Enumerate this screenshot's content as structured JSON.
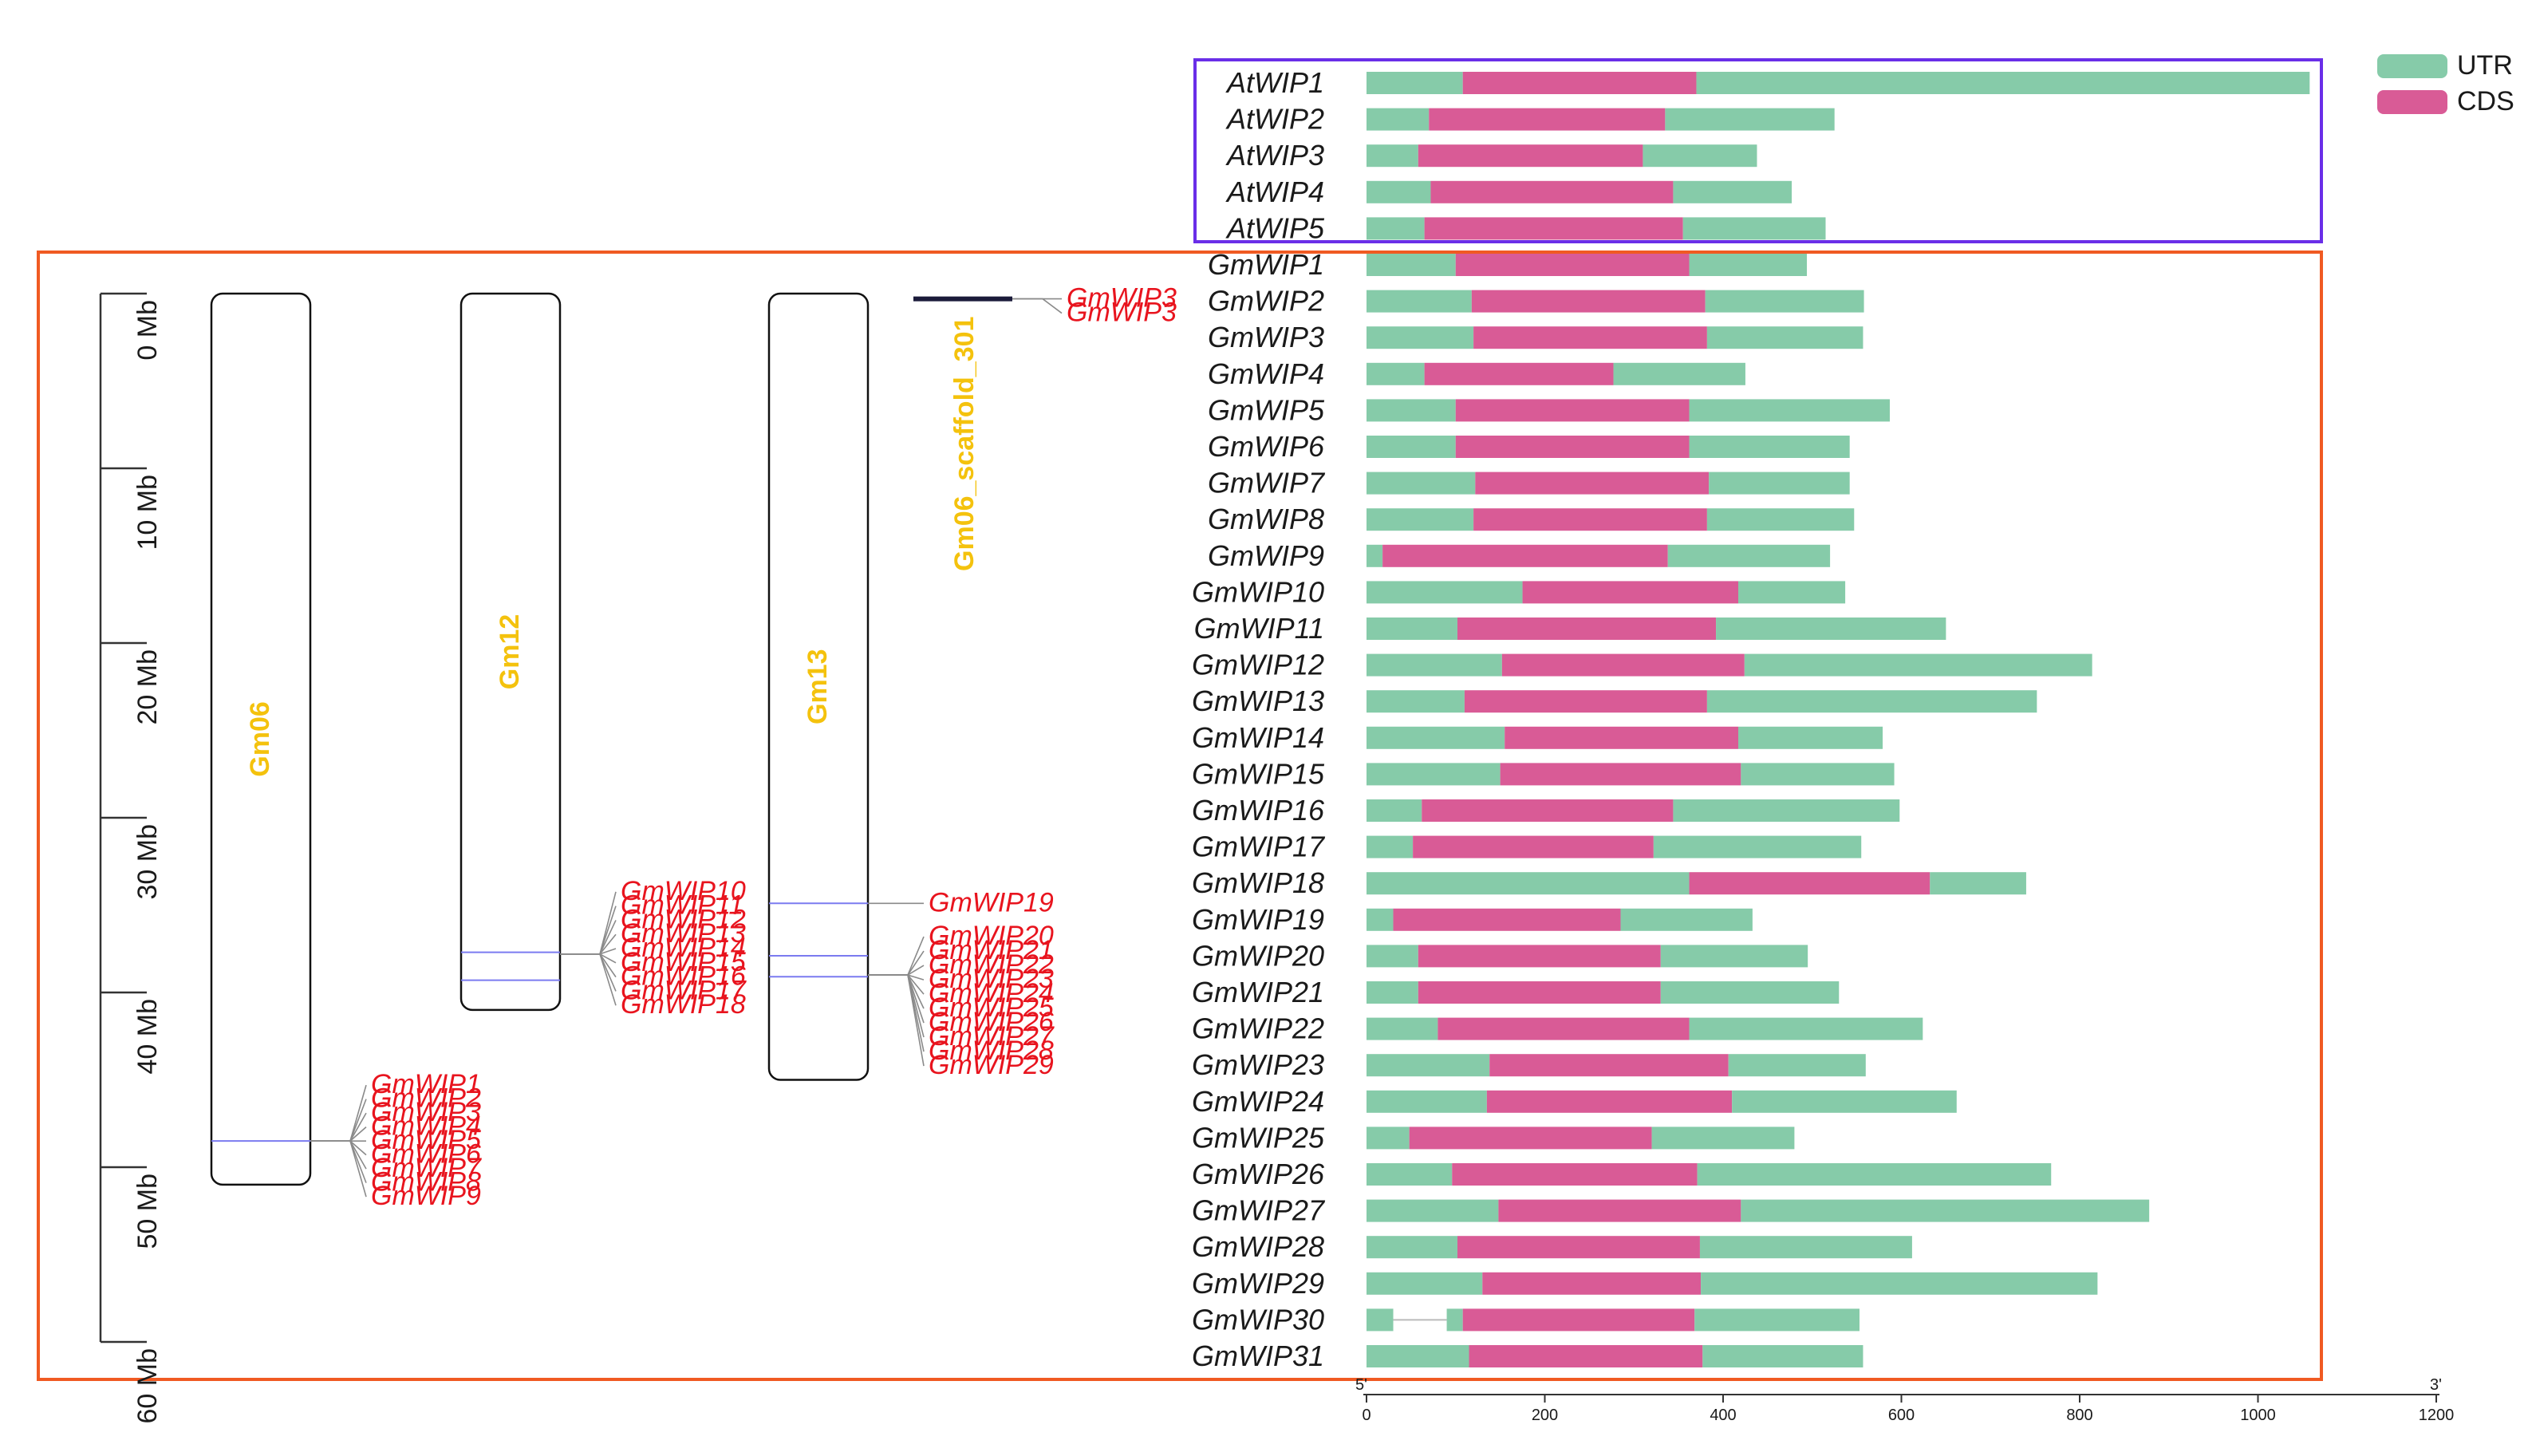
{
  "legend": {
    "utr_label": "UTR",
    "cds_label": "CDS",
    "utr_color": "#86cba9",
    "cds_color": "#d95b96"
  },
  "colors": {
    "arabidopsis_box": "#6a2ee8",
    "soybean_box": "#f05a22",
    "gene_label": "#e8141e",
    "chromosome_label": "#f4c20d",
    "connector": "#8a8a8a",
    "position_marker": "#7b7bf0"
  },
  "physical_map": {
    "scale_labels": [
      "0 Mb",
      "10 Mb",
      "20 Mb",
      "30 Mb",
      "40 Mb",
      "50 Mb",
      "60 Mb"
    ],
    "scale_max_mb": 60,
    "chromosomes": [
      {
        "name": "Gm06",
        "length_mb": 51,
        "positions_mb": [
          48.5
        ],
        "groups": [
          {
            "pos_mb": 48.5,
            "side": "right",
            "labels": [
              "GmWIP1",
              "GmWIP2",
              "GmWIP3",
              "GmWIP4",
              "GmWIP5",
              "GmWIP6",
              "GmWIP7",
              "GmWIP8",
              "GmWIP9"
            ]
          }
        ]
      },
      {
        "name": "Gm12",
        "length_mb": 41,
        "positions_mb": [
          37.7,
          39.3
        ],
        "groups": [
          {
            "pos_mb": 37.8,
            "side": "right",
            "labels": [
              "GmWIP10",
              "GmWIP11",
              "GmWIP12",
              "GmWIP13",
              "GmWIP14",
              "GmWIP15",
              "GmWIP16",
              "GmWIP17",
              "GmWIP18"
            ]
          }
        ]
      },
      {
        "name": "Gm13",
        "length_mb": 45,
        "positions_mb": [
          34.9,
          37.9,
          39.1
        ],
        "groups": [
          {
            "pos_mb": 34.9,
            "side": "right",
            "labels": [
              "GmWIP19"
            ]
          },
          {
            "pos_mb": 39.0,
            "side": "right",
            "labels": [
              "GmWIP20",
              "GmWIP21",
              "GmWIP22",
              "GmWIP23",
              "GmWIP24",
              "GmWIP25",
              "GmWIP26",
              "GmWIP27",
              "GmWIP28",
              "GmWIP29"
            ]
          }
        ]
      },
      {
        "name": "Gm06_scaffold_301",
        "length_mb": 0,
        "positions_mb": [
          0.3
        ],
        "groups": [
          {
            "pos_mb": 0.3,
            "side": "right",
            "labels": [
              "GmWIP3",
              "GmWIP3"
            ]
          }
        ]
      }
    ]
  },
  "gene_structure": {
    "axis": {
      "start_label": "5'",
      "end_label": "3'",
      "max": 1200,
      "ticks": [
        0,
        200,
        400,
        600,
        800,
        1000,
        1200
      ]
    },
    "genes": [
      {
        "name": "AtWIP1",
        "utr5": 108,
        "cds": 262,
        "utr3": 688
      },
      {
        "name": "AtWIP2",
        "utr5": 70,
        "cds": 265,
        "utr3": 190
      },
      {
        "name": "AtWIP3",
        "utr5": 58,
        "cds": 252,
        "utr3": 128
      },
      {
        "name": "AtWIP4",
        "utr5": 72,
        "cds": 272,
        "utr3": 133
      },
      {
        "name": "AtWIP5",
        "utr5": 65,
        "cds": 290,
        "utr3": 160
      },
      {
        "name": "GmWIP1",
        "utr5": 100,
        "cds": 262,
        "utr3": 132
      },
      {
        "name": "GmWIP2",
        "utr5": 118,
        "cds": 262,
        "utr3": 178
      },
      {
        "name": "GmWIP3",
        "utr5": 120,
        "cds": 262,
        "utr3": 175
      },
      {
        "name": "GmWIP4",
        "utr5": 65,
        "cds": 212,
        "utr3": 148
      },
      {
        "name": "GmWIP5",
        "utr5": 100,
        "cds": 262,
        "utr3": 225
      },
      {
        "name": "GmWIP6",
        "utr5": 100,
        "cds": 262,
        "utr3": 180
      },
      {
        "name": "GmWIP7",
        "utr5": 122,
        "cds": 262,
        "utr3": 158
      },
      {
        "name": "GmWIP8",
        "utr5": 120,
        "cds": 262,
        "utr3": 165
      },
      {
        "name": "GmWIP9",
        "utr5": 18,
        "cds": 320,
        "utr3": 182
      },
      {
        "name": "GmWIP10",
        "utr5": 175,
        "cds": 242,
        "utr3": 120
      },
      {
        "name": "GmWIP11",
        "utr5": 102,
        "cds": 290,
        "utr3": 258
      },
      {
        "name": "GmWIP12",
        "utr5": 152,
        "cds": 272,
        "utr3": 390
      },
      {
        "name": "GmWIP13",
        "utr5": 110,
        "cds": 272,
        "utr3": 370
      },
      {
        "name": "GmWIP14",
        "utr5": 155,
        "cds": 262,
        "utr3": 162
      },
      {
        "name": "GmWIP15",
        "utr5": 150,
        "cds": 270,
        "utr3": 172
      },
      {
        "name": "GmWIP16",
        "utr5": 62,
        "cds": 282,
        "utr3": 254
      },
      {
        "name": "GmWIP17",
        "utr5": 52,
        "cds": 270,
        "utr3": 233
      },
      {
        "name": "GmWIP18",
        "utr5": 362,
        "cds": 270,
        "utr3": 108
      },
      {
        "name": "GmWIP19",
        "utr5": 30,
        "cds": 255,
        "utr3": 148
      },
      {
        "name": "GmWIP20",
        "utr5": 58,
        "cds": 272,
        "utr3": 165
      },
      {
        "name": "GmWIP21",
        "utr5": 58,
        "cds": 272,
        "utr3": 200
      },
      {
        "name": "GmWIP22",
        "utr5": 80,
        "cds": 282,
        "utr3": 262
      },
      {
        "name": "GmWIP23",
        "utr5": 138,
        "cds": 268,
        "utr3": 154
      },
      {
        "name": "GmWIP24",
        "utr5": 135,
        "cds": 275,
        "utr3": 252
      },
      {
        "name": "GmWIP25",
        "utr5": 48,
        "cds": 272,
        "utr3": 160
      },
      {
        "name": "GmWIP26",
        "utr5": 96,
        "cds": 275,
        "utr3": 397
      },
      {
        "name": "GmWIP27",
        "utr5": 148,
        "cds": 272,
        "utr3": 458
      },
      {
        "name": "GmWIP28",
        "utr5": 102,
        "cds": 272,
        "utr3": 238
      },
      {
        "name": "GmWIP29",
        "utr5": 130,
        "cds": 245,
        "utr3": 445
      },
      {
        "name": "GmWIP30",
        "utr5": 30,
        "gap": 60,
        "utr5b": 18,
        "cds": 260,
        "utr3": 185
      },
      {
        "name": "GmWIP31",
        "utr5": 115,
        "cds": 262,
        "utr3": 180
      }
    ]
  }
}
